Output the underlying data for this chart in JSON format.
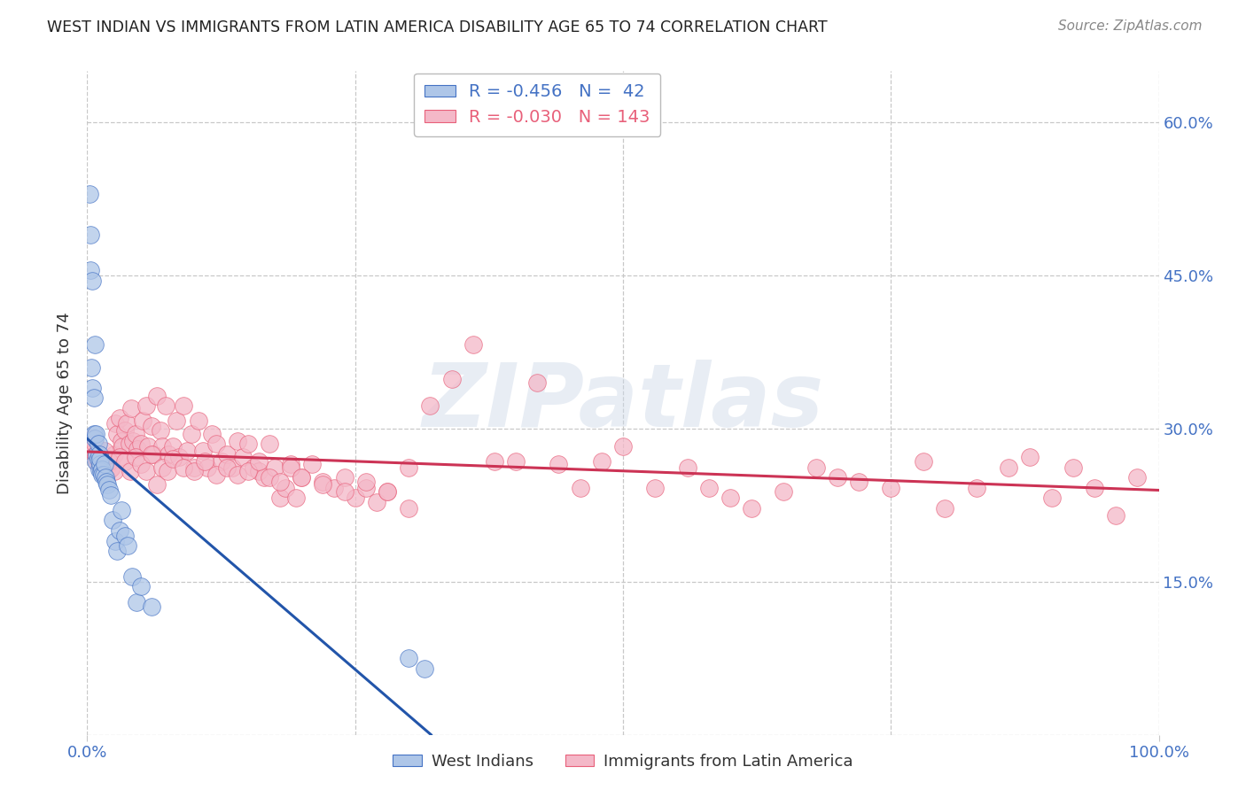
{
  "title": "WEST INDIAN VS IMMIGRANTS FROM LATIN AMERICA DISABILITY AGE 65 TO 74 CORRELATION CHART",
  "source": "Source: ZipAtlas.com",
  "ylabel": "Disability Age 65 to 74",
  "watermark": "ZIPatlas",
  "legend1_label": "West Indians",
  "legend2_label": "Immigrants from Latin America",
  "R1": -0.456,
  "N1": 42,
  "R2": -0.03,
  "N2": 143,
  "color_blue": "#aec6e8",
  "color_pink": "#f4b8c8",
  "edge_blue": "#4472c4",
  "edge_pink": "#e8607a",
  "line_blue": "#2255aa",
  "line_pink": "#cc3355",
  "background": "#ffffff",
  "grid_color": "#c8c8c8",
  "title_color": "#222222",
  "source_color": "#888888",
  "tick_color": "#4472c4",
  "ylabel_color": "#333333",
  "xlim": [
    0.0,
    1.0
  ],
  "ylim": [
    0.0,
    0.65
  ],
  "ytick_vals": [
    0.0,
    0.15,
    0.3,
    0.45,
    0.6
  ],
  "ytick_labels_right": [
    "",
    "15.0%",
    "30.0%",
    "45.0%",
    "60.0%"
  ],
  "xtick_vals": [
    0.0,
    0.25,
    0.5,
    0.75,
    1.0
  ],
  "wi_x": [
    0.002,
    0.003,
    0.003,
    0.004,
    0.005,
    0.005,
    0.006,
    0.006,
    0.007,
    0.007,
    0.008,
    0.008,
    0.009,
    0.01,
    0.01,
    0.011,
    0.011,
    0.012,
    0.012,
    0.013,
    0.014,
    0.014,
    0.015,
    0.016,
    0.017,
    0.018,
    0.019,
    0.02,
    0.022,
    0.024,
    0.026,
    0.028,
    0.03,
    0.032,
    0.035,
    0.038,
    0.042,
    0.046,
    0.05,
    0.06,
    0.3,
    0.315
  ],
  "wi_y": [
    0.53,
    0.49,
    0.455,
    0.36,
    0.445,
    0.34,
    0.295,
    0.33,
    0.29,
    0.382,
    0.268,
    0.295,
    0.275,
    0.285,
    0.27,
    0.275,
    0.26,
    0.265,
    0.27,
    0.258,
    0.26,
    0.255,
    0.255,
    0.265,
    0.252,
    0.248,
    0.245,
    0.24,
    0.235,
    0.21,
    0.19,
    0.18,
    0.2,
    0.22,
    0.195,
    0.185,
    0.155,
    0.13,
    0.145,
    0.125,
    0.075,
    0.065
  ],
  "la_x": [
    0.003,
    0.005,
    0.007,
    0.008,
    0.009,
    0.01,
    0.011,
    0.012,
    0.013,
    0.014,
    0.015,
    0.016,
    0.017,
    0.018,
    0.019,
    0.02,
    0.021,
    0.022,
    0.023,
    0.025,
    0.026,
    0.028,
    0.03,
    0.032,
    0.033,
    0.035,
    0.037,
    0.039,
    0.041,
    0.043,
    0.045,
    0.047,
    0.05,
    0.052,
    0.055,
    0.057,
    0.06,
    0.062,
    0.065,
    0.068,
    0.07,
    0.073,
    0.076,
    0.08,
    0.083,
    0.086,
    0.09,
    0.093,
    0.097,
    0.1,
    0.104,
    0.108,
    0.112,
    0.116,
    0.12,
    0.125,
    0.13,
    0.135,
    0.14,
    0.145,
    0.15,
    0.155,
    0.16,
    0.165,
    0.17,
    0.175,
    0.18,
    0.185,
    0.19,
    0.195,
    0.2,
    0.21,
    0.22,
    0.23,
    0.24,
    0.25,
    0.26,
    0.27,
    0.28,
    0.3,
    0.32,
    0.34,
    0.36,
    0.38,
    0.4,
    0.42,
    0.44,
    0.46,
    0.48,
    0.5,
    0.53,
    0.56,
    0.58,
    0.6,
    0.62,
    0.65,
    0.68,
    0.7,
    0.72,
    0.75,
    0.78,
    0.8,
    0.83,
    0.86,
    0.88,
    0.9,
    0.92,
    0.94,
    0.96,
    0.98,
    0.008,
    0.012,
    0.016,
    0.02,
    0.025,
    0.03,
    0.035,
    0.04,
    0.045,
    0.05,
    0.055,
    0.06,
    0.065,
    0.07,
    0.075,
    0.08,
    0.09,
    0.1,
    0.11,
    0.12,
    0.13,
    0.14,
    0.15,
    0.16,
    0.17,
    0.18,
    0.19,
    0.2,
    0.22,
    0.24,
    0.26,
    0.28,
    0.3
  ],
  "la_y": [
    0.28,
    0.29,
    0.285,
    0.275,
    0.268,
    0.272,
    0.265,
    0.268,
    0.27,
    0.262,
    0.258,
    0.265,
    0.255,
    0.26,
    0.268,
    0.265,
    0.26,
    0.268,
    0.262,
    0.275,
    0.305,
    0.295,
    0.31,
    0.288,
    0.282,
    0.298,
    0.305,
    0.285,
    0.32,
    0.288,
    0.295,
    0.28,
    0.285,
    0.308,
    0.322,
    0.282,
    0.302,
    0.275,
    0.332,
    0.298,
    0.282,
    0.322,
    0.275,
    0.282,
    0.308,
    0.272,
    0.322,
    0.278,
    0.295,
    0.262,
    0.308,
    0.278,
    0.262,
    0.295,
    0.285,
    0.268,
    0.275,
    0.262,
    0.288,
    0.272,
    0.285,
    0.262,
    0.258,
    0.252,
    0.285,
    0.262,
    0.232,
    0.242,
    0.265,
    0.232,
    0.252,
    0.265,
    0.248,
    0.242,
    0.252,
    0.232,
    0.242,
    0.228,
    0.238,
    0.222,
    0.322,
    0.348,
    0.382,
    0.268,
    0.268,
    0.345,
    0.265,
    0.242,
    0.268,
    0.282,
    0.242,
    0.262,
    0.242,
    0.232,
    0.222,
    0.238,
    0.262,
    0.252,
    0.248,
    0.242,
    0.268,
    0.222,
    0.242,
    0.262,
    0.272,
    0.232,
    0.262,
    0.242,
    0.215,
    0.252,
    0.272,
    0.268,
    0.278,
    0.268,
    0.258,
    0.272,
    0.268,
    0.258,
    0.272,
    0.265,
    0.258,
    0.275,
    0.245,
    0.262,
    0.258,
    0.27,
    0.262,
    0.258,
    0.268,
    0.255,
    0.262,
    0.255,
    0.258,
    0.268,
    0.252,
    0.248,
    0.262,
    0.252,
    0.245,
    0.238,
    0.248,
    0.238,
    0.262
  ]
}
